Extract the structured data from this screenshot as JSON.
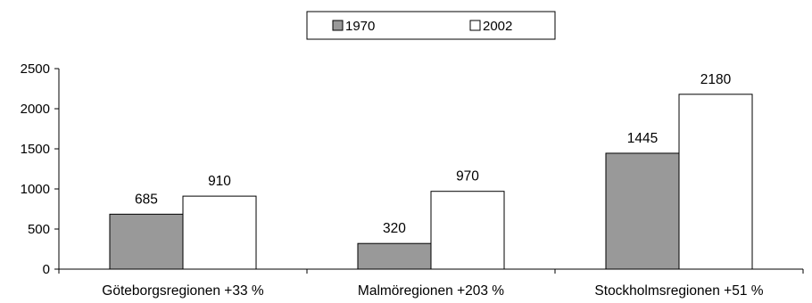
{
  "chart_data": {
    "type": "bar",
    "categories": [
      "Göteborgsregionen +33 %",
      "Malmöregionen +203 %",
      "Stockholmsregionen +51 %"
    ],
    "series": [
      {
        "name": "1970",
        "values": [
          685,
          320,
          1445
        ],
        "color": "#999999"
      },
      {
        "name": "2002",
        "values": [
          910,
          970,
          2180
        ],
        "color": "#ffffff"
      }
    ],
    "yticks": [
      "0",
      "500",
      "1000",
      "1500",
      "2000",
      "2500"
    ],
    "ylim": [
      0,
      2500
    ],
    "legend_position": "top-center",
    "grid": false
  }
}
